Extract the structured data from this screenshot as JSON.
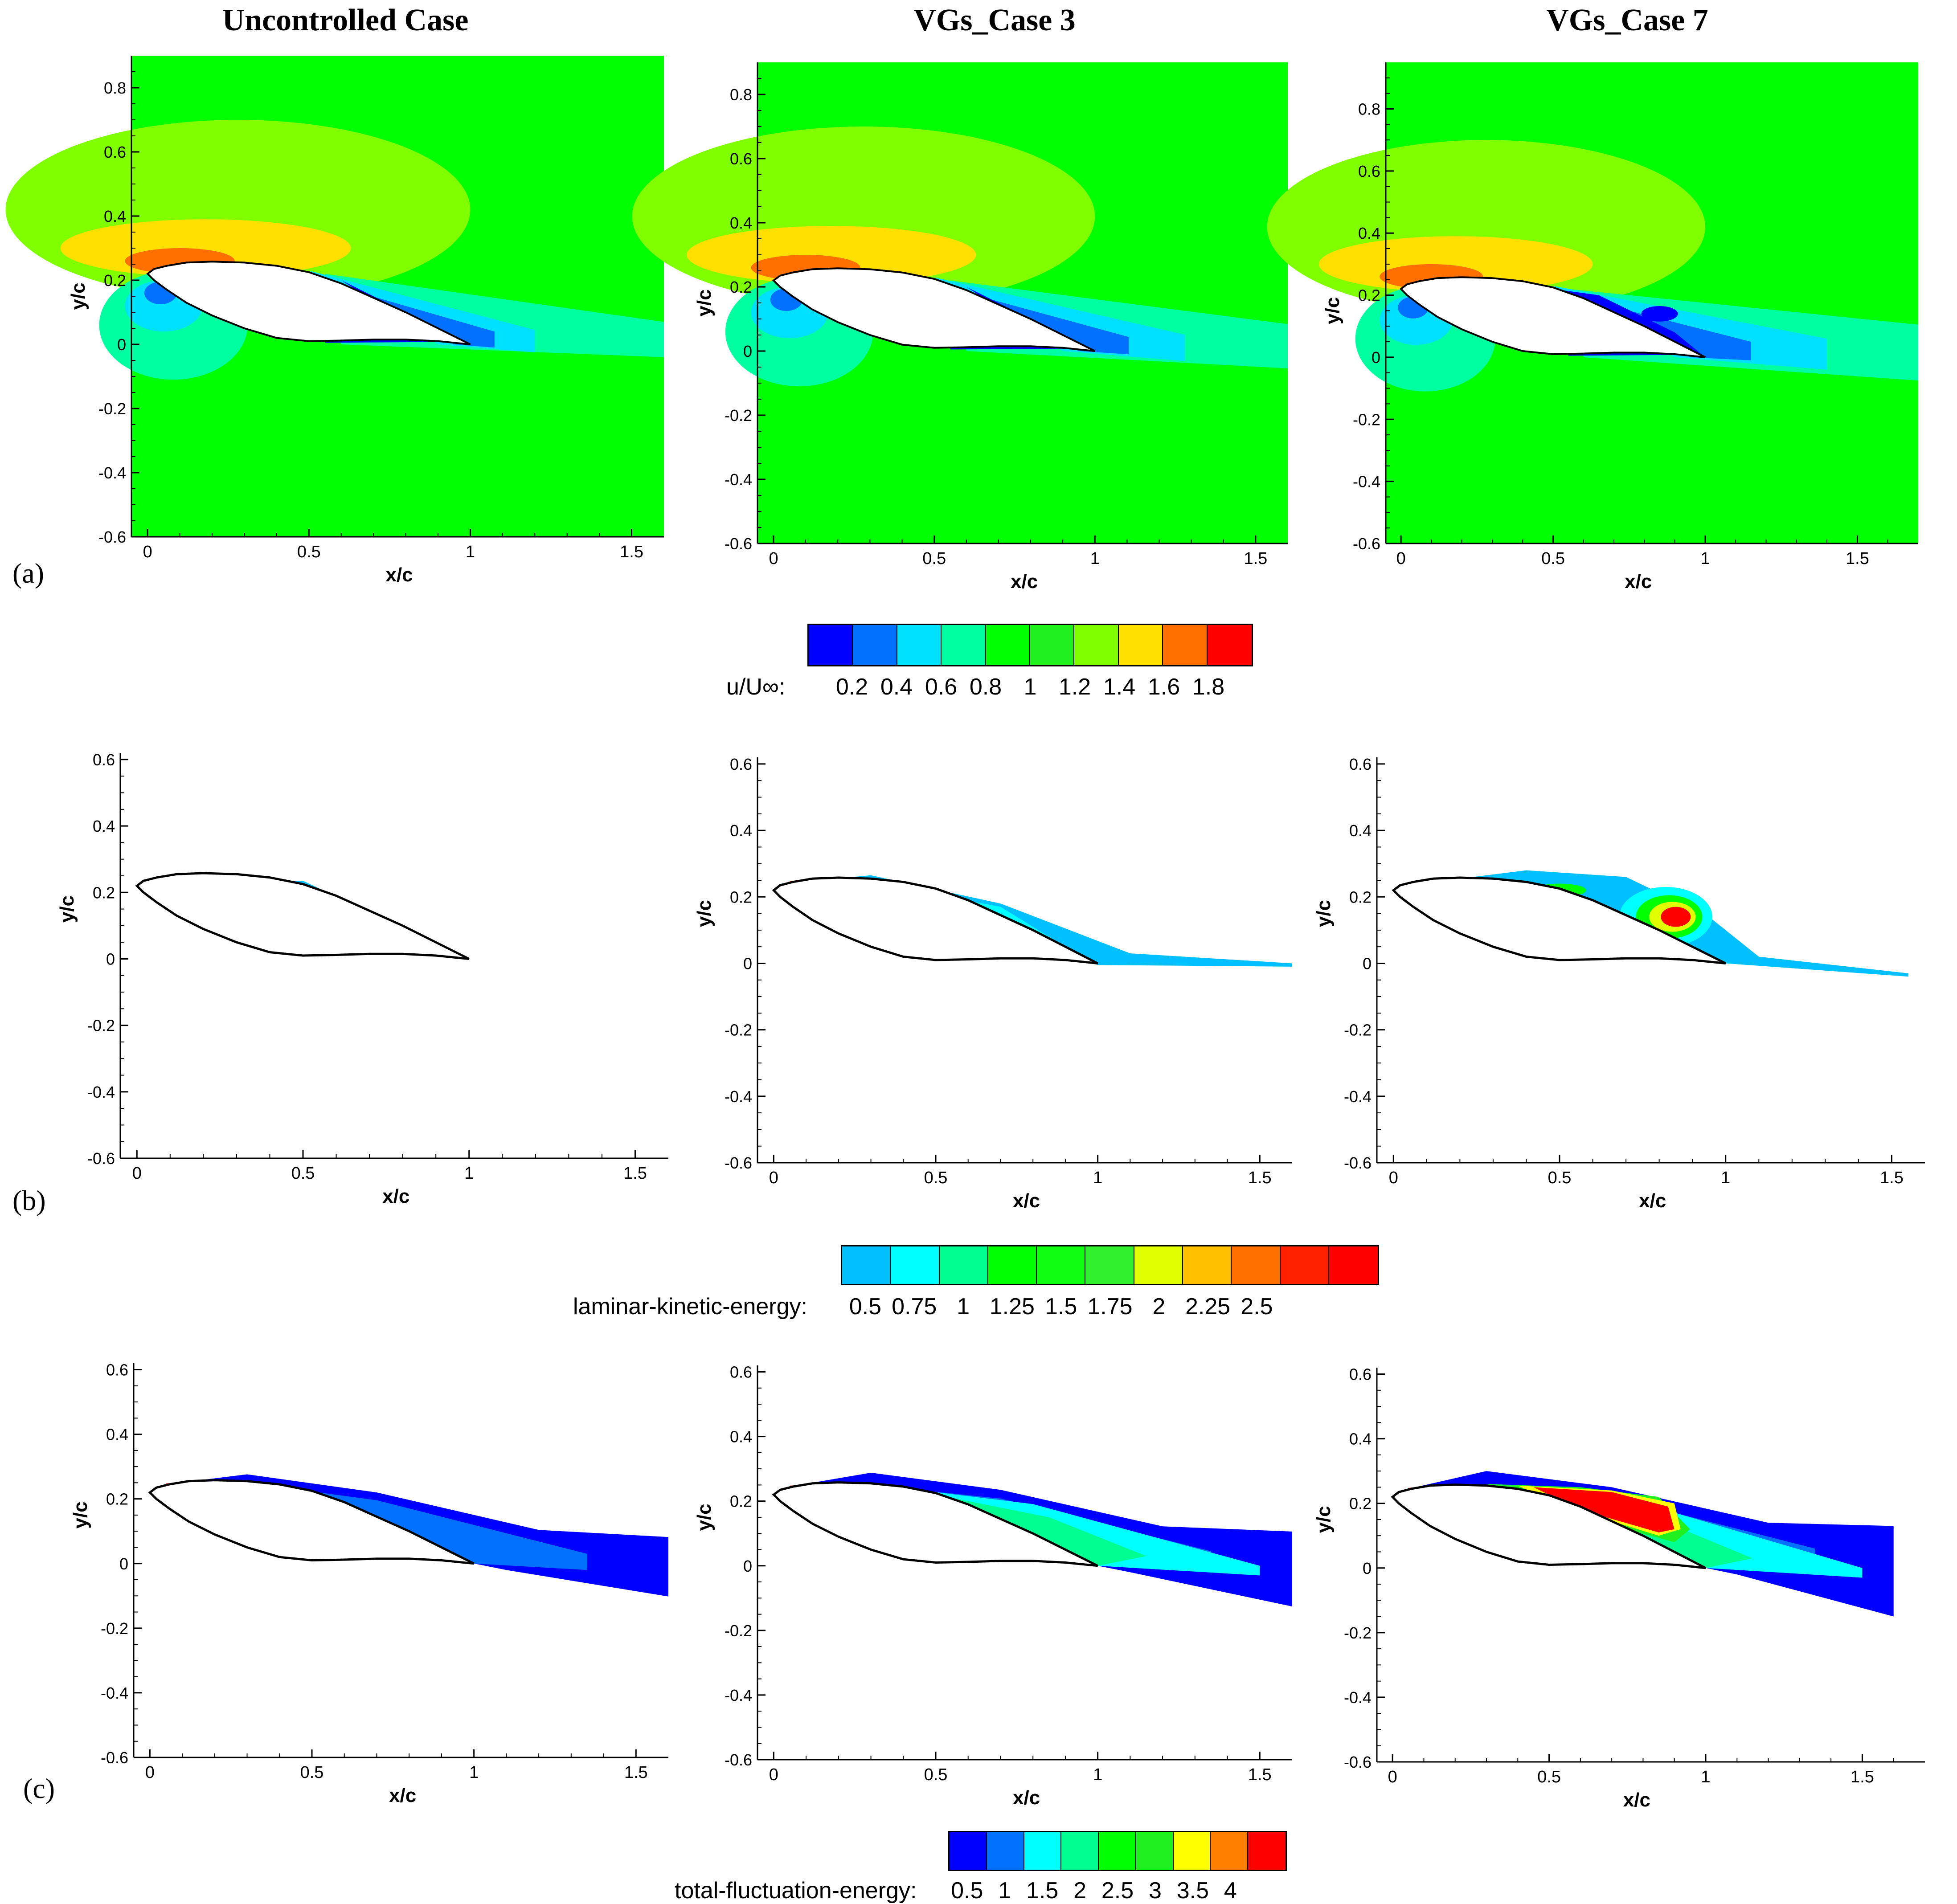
{
  "column_titles": [
    "Uncontrolled Case",
    "VGs_Case 3",
    "VGs_Case 7"
  ],
  "row_labels": [
    "(a)",
    "(b)",
    "(c)"
  ],
  "colors": {
    "u_levels": [
      "#0000ff",
      "#0070ff",
      "#00e0ff",
      "#00ffa0",
      "#00ff00",
      "#20f020",
      "#80ff00",
      "#ffe000",
      "#ff7000",
      "#ff0000"
    ],
    "lke_levels": [
      "#00c0ff",
      "#00ffff",
      "#00ff90",
      "#00ff00",
      "#10ff10",
      "#30f030",
      "#e0ff00",
      "#ffc000",
      "#ff7000",
      "#ff2000",
      "#ff0000"
    ],
    "tfe_levels": [
      "#0000ff",
      "#0070ff",
      "#00ffff",
      "#00ff90",
      "#00ff00",
      "#20f020",
      "#ffff00",
      "#ff8000",
      "#ff0000"
    ],
    "field_green": "#00ff00",
    "outline": "#000000"
  },
  "legends": {
    "u": {
      "label": "u/U∞:",
      "ticks": [
        "0.2",
        "0.4",
        "0.6",
        "0.8",
        "1",
        "1.2",
        "1.4",
        "1.6",
        "1.8"
      ]
    },
    "lke": {
      "label": "laminar-kinetic-energy:",
      "ticks": [
        "0.5",
        "0.75",
        "1",
        "1.25",
        "1.5",
        "1.75",
        "2",
        "2.25",
        "2.5"
      ]
    },
    "tfe": {
      "label": "total-fluctuation-energy:",
      "ticks": [
        "0.5",
        "1",
        "1.5",
        "2",
        "2.5",
        "3",
        "3.5",
        "4"
      ]
    }
  },
  "chart_data": [
    {
      "type": "heatmap",
      "row": "a",
      "column": "Uncontrolled Case",
      "variable": "u/U∞",
      "xlabel": "x/c",
      "ylabel": "y/c",
      "xlim": [
        -0.05,
        1.6
      ],
      "ylim": [
        -0.6,
        0.9
      ],
      "xticks": [
        "0",
        "0.5",
        "1",
        "1.5"
      ],
      "yticks": [
        "0.8",
        "0.6",
        "0.4",
        "0.2",
        "0",
        "-0.2",
        "-0.4",
        "-0.6"
      ],
      "wake_strength": 0.5
    },
    {
      "type": "heatmap",
      "row": "a",
      "column": "VGs_Case 3",
      "variable": "u/U∞",
      "xlabel": "x/c",
      "ylabel": "y/c",
      "xlim": [
        -0.05,
        1.6
      ],
      "ylim": [
        -0.6,
        0.9
      ],
      "xticks": [
        "0",
        "0.5",
        "1",
        "1.5"
      ],
      "yticks": [
        "0.8",
        "0.6",
        "0.4",
        "0.2",
        "0",
        "-0.2",
        "-0.4",
        "-0.6"
      ],
      "wake_strength": 0.7
    },
    {
      "type": "heatmap",
      "row": "a",
      "column": "VGs_Case 7",
      "variable": "u/U∞",
      "xlabel": "x/c",
      "ylabel": "y/c",
      "xlim": [
        -0.05,
        1.7
      ],
      "ylim": [
        -0.6,
        0.95
      ],
      "xticks": [
        "0",
        "0.5",
        "1",
        "1.5"
      ],
      "yticks": [
        "0.8",
        "0.6",
        "0.4",
        "0.2",
        "0",
        "-0.2",
        "-0.4",
        "-0.6"
      ],
      "wake_strength": 1.0
    },
    {
      "type": "heatmap",
      "row": "b",
      "column": "Uncontrolled Case",
      "variable": "laminar-kinetic-energy",
      "xlabel": "x/c",
      "ylabel": "y/c",
      "xlim": [
        -0.05,
        1.6
      ],
      "ylim": [
        -0.6,
        0.62
      ],
      "xticks": [
        "0",
        "0.5",
        "1",
        "1.5"
      ],
      "yticks": [
        "0.6",
        "0.4",
        "0.2",
        "0",
        "-0.2",
        "-0.4",
        "-0.6"
      ],
      "wake_strength": 0.1
    },
    {
      "type": "heatmap",
      "row": "b",
      "column": "VGs_Case 3",
      "variable": "laminar-kinetic-energy",
      "xlabel": "x/c",
      "ylabel": "y/c",
      "xlim": [
        -0.05,
        1.6
      ],
      "ylim": [
        -0.6,
        0.62
      ],
      "xticks": [
        "0",
        "0.5",
        "1",
        "1.5"
      ],
      "yticks": [
        "0.6",
        "0.4",
        "0.2",
        "0",
        "-0.2",
        "-0.4",
        "-0.6"
      ],
      "wake_strength": 0.6
    },
    {
      "type": "heatmap",
      "row": "b",
      "column": "VGs_Case 7",
      "variable": "laminar-kinetic-energy",
      "xlabel": "x/c",
      "ylabel": "y/c",
      "xlim": [
        -0.05,
        1.6
      ],
      "ylim": [
        -0.6,
        0.62
      ],
      "xticks": [
        "0",
        "0.5",
        "1",
        "1.5"
      ],
      "yticks": [
        "0.6",
        "0.4",
        "0.2",
        "0",
        "-0.2",
        "-0.4",
        "-0.6"
      ],
      "wake_strength": 1.0
    },
    {
      "type": "heatmap",
      "row": "c",
      "column": "Uncontrolled Case",
      "variable": "total-fluctuation-energy",
      "xlabel": "x/c",
      "ylabel": "y/c",
      "xlim": [
        -0.05,
        1.6
      ],
      "ylim": [
        -0.6,
        0.62
      ],
      "xticks": [
        "0",
        "0.5",
        "1",
        "1.5"
      ],
      "yticks": [
        "0.6",
        "0.4",
        "0.2",
        "0",
        "-0.2",
        "-0.4",
        "-0.6"
      ],
      "wake_strength": 0.4
    },
    {
      "type": "heatmap",
      "row": "c",
      "column": "VGs_Case 3",
      "variable": "total-fluctuation-energy",
      "xlabel": "x/c",
      "ylabel": "y/c",
      "xlim": [
        -0.05,
        1.6
      ],
      "ylim": [
        -0.6,
        0.62
      ],
      "xticks": [
        "0",
        "0.5",
        "1",
        "1.5"
      ],
      "yticks": [
        "0.6",
        "0.4",
        "0.2",
        "0",
        "-0.2",
        "-0.4",
        "-0.6"
      ],
      "wake_strength": 0.7
    },
    {
      "type": "heatmap",
      "row": "c",
      "column": "VGs_Case 7",
      "variable": "total-fluctuation-energy",
      "xlabel": "x/c",
      "ylabel": "y/c",
      "xlim": [
        -0.05,
        1.7
      ],
      "ylim": [
        -0.6,
        0.62
      ],
      "xticks": [
        "0",
        "0.5",
        "1",
        "1.5"
      ],
      "yticks": [
        "0.6",
        "0.4",
        "0.2",
        "0",
        "-0.2",
        "-0.4",
        "-0.6"
      ],
      "wake_strength": 1.0
    }
  ]
}
